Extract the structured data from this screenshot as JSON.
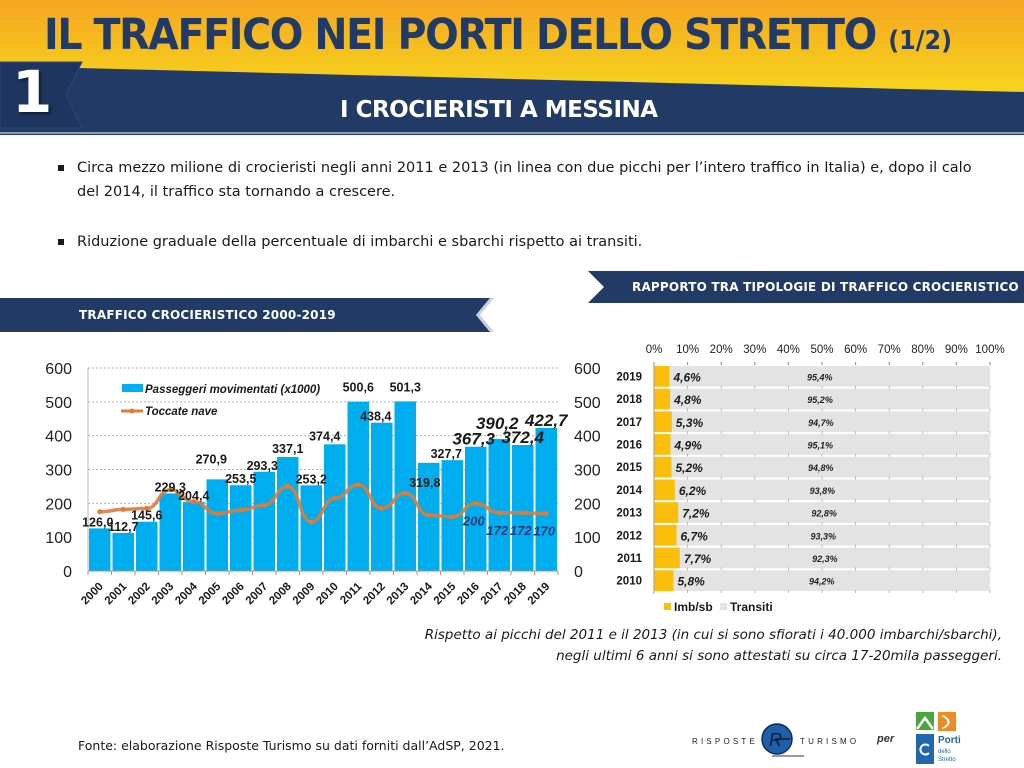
{
  "header": {
    "title": "IL TRAFFICO NEI PORTI DELLO STRETTO",
    "title_part": "(1/2)",
    "section_number": "1",
    "subtitle": "I CROCIERISTI A MESSINA"
  },
  "bullets": [
    {
      "text": "Circa mezzo milione di crocieristi negli anni 2011 e 2013 (in linea con due picchi per l’intero traffico in Italia) e, dopo il calo del 2014, il traffico sta tornando a crescere."
    },
    {
      "text": "Riduzione graduale della percentuale di imbarchi e sbarchi rispetto ai transiti."
    }
  ],
  "banners": {
    "left": "TRAFFICO CROCIERISTICO 2000-2019",
    "right": "RAPPORTO TRA TIPOLOGIE DI TRAFFICO CROCIERISTICO"
  },
  "note": {
    "line1": "Rispetto ai picchi del 2011 e il 2013 (in cui si sono sfiorati i 40.000 imbarchi/sbarchi),",
    "line2": "negli ultimi 6 anni si sono attestati su circa 17-20mila passeggeri."
  },
  "footer": {
    "source": "Fonte: elaborazione Risposte Turismo su dati forniti dall’AdSP, 2021.",
    "logo_rt_left": "RISPOSTE",
    "logo_rt_right": "TURISMO",
    "per": "per",
    "logo_porti_line1": "Porti",
    "logo_porti_line2": "dello",
    "logo_porti_line3": "Stretto"
  },
  "colors": {
    "navy": "#213a66",
    "bar_blue": "#00aeef",
    "line_orange": "#e07b39",
    "imb_yellow": "#fbbf0b",
    "transiti_grey": "#e3e3e3"
  },
  "chart_data": [
    {
      "type": "bar",
      "title": "TRAFFICO CROCIERISTICO 2000-2019",
      "categories": [
        "2000",
        "2001",
        "2002",
        "2003",
        "2004",
        "2005",
        "2006",
        "2007",
        "2008",
        "2009",
        "2010",
        "2011",
        "2012",
        "2013",
        "2014",
        "2015",
        "2016",
        "2017",
        "2018",
        "2019"
      ],
      "series": [
        {
          "name": "Passeggeri movimentati (x1000)",
          "kind": "bar",
          "axis": "left",
          "values": [
            126.0,
            112.7,
            145.6,
            229.3,
            204.4,
            270.9,
            253.5,
            293.3,
            337.1,
            253.2,
            374.4,
            500.6,
            438.4,
            501.3,
            319.8,
            327.7,
            367.3,
            390.2,
            372.4,
            422.7
          ],
          "labels": [
            "126,0",
            "112,7",
            "145,6",
            "229,3",
            "204,4",
            "270,9",
            "253,5",
            "293,3",
            "337,1",
            "253,2",
            "374,4",
            "500,6",
            "438,4",
            "501,3",
            "319,8",
            "327,7",
            "367,3",
            "390,2",
            "372,4",
            "422,7"
          ]
        },
        {
          "name": "Toccate nave",
          "kind": "line",
          "axis": "right",
          "values": [
            175,
            182,
            185,
            240,
            205,
            170,
            180,
            195,
            250,
            145,
            215,
            255,
            185,
            230,
            165,
            160,
            200,
            172,
            172,
            170
          ],
          "labels": {
            "16": "200",
            "17": "172",
            "18": "172",
            "19": "170"
          }
        }
      ],
      "yticks_left": [
        0,
        100,
        200,
        300,
        400,
        500,
        600
      ],
      "yticks_right": [
        0,
        100,
        200,
        300,
        400,
        500,
        600
      ],
      "ylim": [
        0,
        600
      ],
      "grid": true,
      "legend_position": "top-left"
    },
    {
      "type": "bar",
      "orientation": "horizontal-stacked-100",
      "title": "RAPPORTO TRA TIPOLOGIE DI TRAFFICO CROCIERISTICO",
      "categories": [
        "2019",
        "2018",
        "2017",
        "2016",
        "2015",
        "2014",
        "2013",
        "2012",
        "2011",
        "2010"
      ],
      "series": [
        {
          "name": "Imb/sb",
          "values": [
            4.6,
            4.8,
            5.3,
            4.9,
            5.2,
            6.2,
            7.2,
            6.7,
            7.7,
            5.8
          ],
          "labels": [
            "4,6%",
            "4,8%",
            "5,3%",
            "4,9%",
            "5,2%",
            "6,2%",
            "7,2%",
            "6,7%",
            "7,7%",
            "5,8%"
          ]
        },
        {
          "name": "Transiti",
          "values": [
            95.4,
            95.2,
            94.7,
            95.1,
            94.8,
            93.8,
            92.8,
            93.3,
            92.3,
            94.2
          ],
          "labels": [
            "95,4%",
            "95,2%",
            "94,7%",
            "95,1%",
            "94,8%",
            "93,8%",
            "92,8%",
            "93,3%",
            "92,3%",
            "94,2%"
          ]
        }
      ],
      "xticks": [
        "0%",
        "10%",
        "20%",
        "30%",
        "40%",
        "50%",
        "60%",
        "70%",
        "80%",
        "90%",
        "100%"
      ],
      "xlim": [
        0,
        100
      ],
      "legend_position": "bottom-left"
    }
  ]
}
